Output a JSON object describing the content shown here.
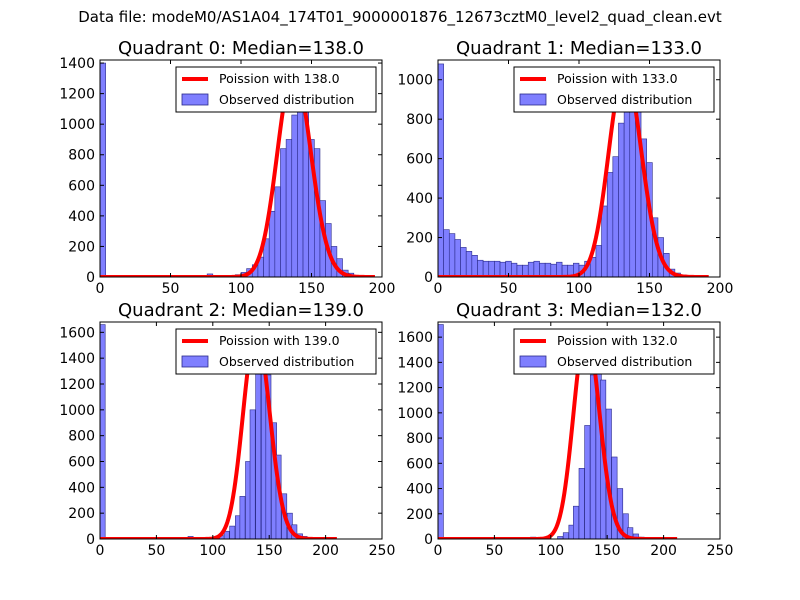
{
  "figure_title": "Data file: modeM0/AS1A04_174T01_9000001876_12673cztM0_level2_quad_clean.evt",
  "colors": {
    "bars": "#7f7fff",
    "bar_edge": "#2a2a8a",
    "poisson": "#ff0000"
  },
  "chart_data": [
    {
      "type": "bar",
      "title": "Quadrant 0: Median=138.0",
      "xlim": [
        0,
        200
      ],
      "ylim": [
        0,
        1420
      ],
      "xticks": [
        "0",
        "50",
        "100",
        "150",
        "200"
      ],
      "yticks": [
        "0",
        "200",
        "400",
        "600",
        "800",
        "1000",
        "1200",
        "1400"
      ],
      "bin_width": 4,
      "bins": [
        [
          0,
          1400
        ],
        [
          76,
          20
        ],
        [
          80,
          10
        ],
        [
          88,
          5
        ],
        [
          96,
          15
        ],
        [
          100,
          30
        ],
        [
          104,
          55
        ],
        [
          108,
          80
        ],
        [
          112,
          130
        ],
        [
          116,
          250
        ],
        [
          120,
          430
        ],
        [
          124,
          590
        ],
        [
          128,
          840
        ],
        [
          132,
          900
        ],
        [
          136,
          1060
        ],
        [
          140,
          1130
        ],
        [
          144,
          1170
        ],
        [
          148,
          900
        ],
        [
          152,
          840
        ],
        [
          156,
          500
        ],
        [
          160,
          350
        ],
        [
          164,
          200
        ],
        [
          168,
          120
        ],
        [
          172,
          45
        ],
        [
          176,
          25
        ],
        [
          180,
          8
        ],
        [
          184,
          5
        ]
      ],
      "poisson_label": "Poission with 138.0",
      "poisson_mean": 138.0,
      "poisson_peak": 1360,
      "poisson_range": [
        0,
        195
      ],
      "hist_label": "Observed distribution"
    },
    {
      "type": "bar",
      "title": "Quadrant 1: Median=133.0",
      "xlim": [
        0,
        200
      ],
      "ylim": [
        0,
        1100
      ],
      "xticks": [
        "0",
        "50",
        "100",
        "150",
        "200"
      ],
      "yticks": [
        "0",
        "200",
        "400",
        "600",
        "800",
        "1000"
      ],
      "bin_width": 4,
      "bins": [
        [
          0,
          1080
        ],
        [
          4,
          240
        ],
        [
          8,
          220
        ],
        [
          12,
          190
        ],
        [
          16,
          150
        ],
        [
          20,
          130
        ],
        [
          24,
          110
        ],
        [
          28,
          85
        ],
        [
          32,
          80
        ],
        [
          36,
          80
        ],
        [
          40,
          80
        ],
        [
          44,
          75
        ],
        [
          48,
          80
        ],
        [
          52,
          70
        ],
        [
          56,
          60
        ],
        [
          60,
          60
        ],
        [
          64,
          75
        ],
        [
          68,
          80
        ],
        [
          72,
          70
        ],
        [
          76,
          70
        ],
        [
          80,
          65
        ],
        [
          84,
          75
        ],
        [
          88,
          60
        ],
        [
          92,
          60
        ],
        [
          96,
          70
        ],
        [
          100,
          60
        ],
        [
          104,
          80
        ],
        [
          108,
          100
        ],
        [
          112,
          160
        ],
        [
          116,
          360
        ],
        [
          120,
          530
        ],
        [
          124,
          610
        ],
        [
          128,
          780
        ],
        [
          132,
          1020
        ],
        [
          136,
          900
        ],
        [
          140,
          1000
        ],
        [
          144,
          700
        ],
        [
          148,
          580
        ],
        [
          152,
          300
        ],
        [
          156,
          200
        ],
        [
          160,
          120
        ],
        [
          164,
          40
        ],
        [
          168,
          20
        ],
        [
          172,
          10
        ],
        [
          176,
          5
        ]
      ],
      "poisson_label": "Poission with 133.0",
      "poisson_mean": 133.0,
      "poisson_peak": 1050,
      "poisson_range": [
        0,
        192
      ],
      "hist_label": "Observed distribution"
    },
    {
      "type": "bar",
      "title": "Quadrant 2: Median=139.0",
      "xlim": [
        0,
        250
      ],
      "ylim": [
        0,
        1680
      ],
      "xticks": [
        "0",
        "50",
        "100",
        "150",
        "200",
        "250"
      ],
      "yticks": [
        "0",
        "200",
        "400",
        "600",
        "800",
        "1000",
        "1200",
        "1400",
        "1600"
      ],
      "bin_width": 4.6,
      "bins": [
        [
          0,
          1660
        ],
        [
          78,
          20
        ],
        [
          101,
          15
        ],
        [
          106,
          25
        ],
        [
          110,
          60
        ],
        [
          115,
          100
        ],
        [
          120,
          180
        ],
        [
          124,
          330
        ],
        [
          129,
          600
        ],
        [
          133,
          1000
        ],
        [
          138,
          1400
        ],
        [
          143,
          1420
        ],
        [
          147,
          1270
        ],
        [
          152,
          900
        ],
        [
          156,
          650
        ],
        [
          161,
          350
        ],
        [
          166,
          200
        ],
        [
          170,
          110
        ],
        [
          175,
          40
        ],
        [
          179,
          20
        ],
        [
          184,
          8
        ]
      ],
      "poisson_label": "Poission with 139.0",
      "poisson_mean": 139.0,
      "poisson_peak": 1610,
      "poisson_range": [
        0,
        210
      ],
      "hist_label": "Observed distribution"
    },
    {
      "type": "bar",
      "title": "Quadrant 3: Median=132.0",
      "xlim": [
        0,
        250
      ],
      "ylim": [
        0,
        1720
      ],
      "xticks": [
        "0",
        "50",
        "100",
        "150",
        "200",
        "250"
      ],
      "yticks": [
        "0",
        "200",
        "400",
        "600",
        "800",
        "1000",
        "1200",
        "1400",
        "1600"
      ],
      "bin_width": 4.8,
      "bins": [
        [
          0,
          1700
        ],
        [
          82,
          15
        ],
        [
          106,
          20
        ],
        [
          111,
          50
        ],
        [
          116,
          110
        ],
        [
          120,
          260
        ],
        [
          125,
          560
        ],
        [
          130,
          900
        ],
        [
          135,
          1300
        ],
        [
          140,
          1460
        ],
        [
          144,
          1260
        ],
        [
          149,
          1030
        ],
        [
          154,
          650
        ],
        [
          159,
          400
        ],
        [
          164,
          200
        ],
        [
          168,
          90
        ],
        [
          173,
          40
        ],
        [
          178,
          15
        ]
      ],
      "poisson_label": "Poission with 132.0",
      "poisson_mean": 132.0,
      "poisson_peak": 1650,
      "poisson_range": [
        0,
        212
      ],
      "hist_label": "Observed distribution"
    }
  ]
}
